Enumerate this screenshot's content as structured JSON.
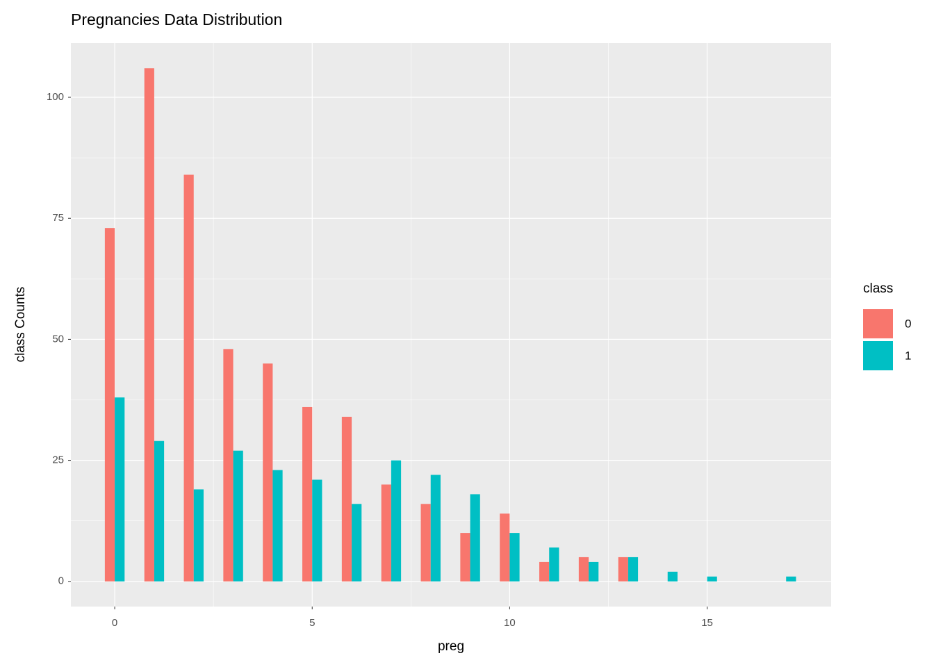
{
  "chart_data": {
    "type": "bar",
    "title": "Pregnancies Data Distribution",
    "x_label": "preg",
    "y_label": "class Counts",
    "legend_title": "class",
    "x": [
      0,
      1,
      2,
      3,
      4,
      5,
      6,
      7,
      8,
      9,
      10,
      11,
      12,
      13,
      14,
      15,
      17
    ],
    "series": [
      {
        "name": "0",
        "color": "#f8766d",
        "values": [
          73,
          106,
          84,
          48,
          45,
          36,
          34,
          20,
          16,
          10,
          14,
          4,
          5,
          5,
          null,
          null,
          null
        ]
      },
      {
        "name": "1",
        "color": "#00bfc4",
        "values": [
          38,
          29,
          19,
          27,
          23,
          21,
          16,
          25,
          22,
          18,
          10,
          7,
          4,
          5,
          2,
          1,
          1
        ]
      }
    ],
    "xlim": [
      -1.11,
      18.14
    ],
    "xticks": [
      0,
      5,
      10,
      15
    ],
    "ylim": [
      -5.2,
      111.2
    ],
    "yticks": [
      0,
      25,
      50,
      75,
      100
    ],
    "grid": true,
    "legend": "right"
  }
}
